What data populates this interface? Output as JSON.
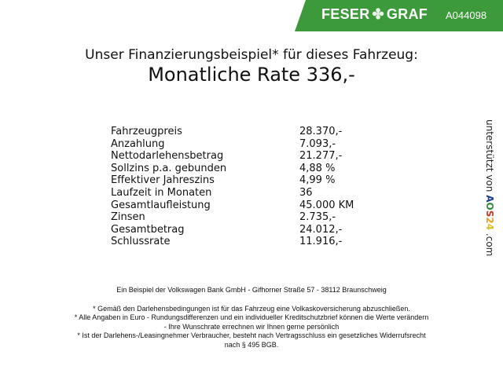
{
  "header": {
    "brand": "FESER",
    "brand2": "GRAF",
    "code": "A044098",
    "brand_color": "#3d9a3a"
  },
  "title": "Unser Finanzierungsbeispiel* für dieses Fahrzeug:",
  "subtitle": "Monatliche Rate 336,-",
  "rows": [
    {
      "label": "Fahrzeugpreis",
      "value": "28.370,-"
    },
    {
      "label": "Anzahlung",
      "value": "7.093,-"
    },
    {
      "label": "Nettodarlehensbetrag",
      "value": "21.277,-"
    },
    {
      "label": "Sollzins p.a. gebunden",
      "value": "4,88 %"
    },
    {
      "label": "Effektiver Jahreszins",
      "value": "4,99 %"
    },
    {
      "label": "Laufzeit in Monaten",
      "value": "36"
    },
    {
      "label": "Gesamtlaufleistung",
      "value": "45.000 KM"
    },
    {
      "label": "Zinsen",
      "value": "2.735,-"
    },
    {
      "label": "Gesamtbetrag",
      "value": "24.012,-"
    },
    {
      "label": "Schlussrate",
      "value": "11.916,-"
    }
  ],
  "side": {
    "prefix": "unterstützt von",
    "logo": [
      "A",
      "O",
      "S",
      "2",
      "4"
    ],
    "suffix": ".com"
  },
  "footer": {
    "bank": "Ein Beispiel der Volkswagen Bank GmbH - Gifhorner Straße 57 - 38112 Braunschweig",
    "notes": [
      "* Gemäß den Darlehensbedingungen ist für das Fahrzeug eine Volkaskoversicherung abzuschließen.",
      "* Alle Angaben in Euro - Rundungsdifferenzen und ein individueller Kreditschutzbrief können die Werte verändern",
      "- Ihre Wunschrate errechnen wir Ihnen gerne persönlich",
      "* Ist der Darlehens-/Leasingnehmer Verbraucher, besteht nach Vertragsschluss ein gesetzliches Widerrufsrecht",
      "nach § 495 BGB."
    ]
  }
}
